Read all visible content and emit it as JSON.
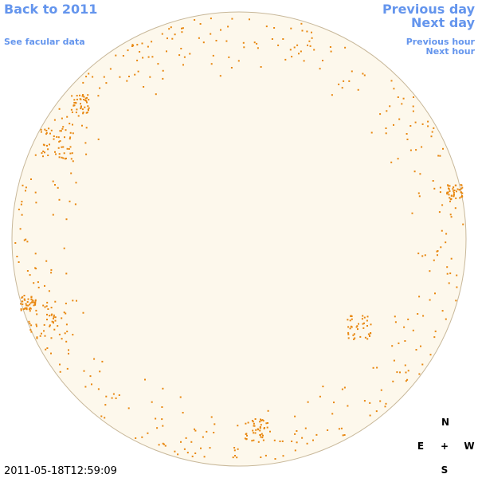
{
  "nav": {
    "back": "Back to 2011",
    "facular": "See facular data",
    "previous_day": "Previous day",
    "next_day": "Next day",
    "previous_hour": "Previous hour",
    "next_hour": "Next hour"
  },
  "timestamp": "2011-05-18T12:59:09",
  "compass": {
    "north": "N",
    "east": "E",
    "center": "+",
    "west": "W",
    "south": "S"
  }
}
